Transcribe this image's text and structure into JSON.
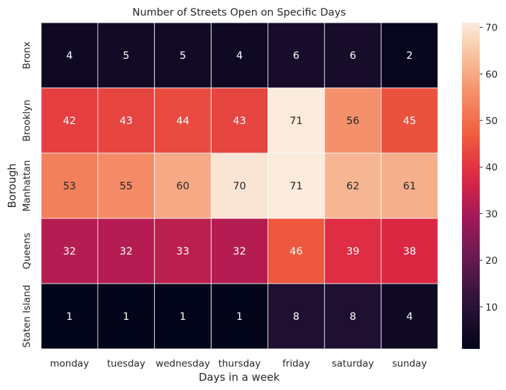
{
  "chart_data": {
    "type": "heatmap",
    "title": "Number of Streets Open on Specific Days",
    "xlabel": "Days in a week",
    "ylabel": "Borough",
    "x": [
      "monday",
      "tuesday",
      "wednesday",
      "thursday",
      "friday",
      "saturday",
      "sunday"
    ],
    "y": [
      "Bronx",
      "Brooklyn",
      "Manhattan",
      "Queens",
      "Staten Island"
    ],
    "values": [
      [
        4,
        5,
        5,
        4,
        6,
        6,
        2
      ],
      [
        42,
        43,
        44,
        43,
        71,
        56,
        45
      ],
      [
        53,
        55,
        60,
        70,
        71,
        62,
        61
      ],
      [
        32,
        32,
        33,
        32,
        46,
        39,
        38
      ],
      [
        1,
        1,
        1,
        1,
        8,
        8,
        4
      ]
    ],
    "colormap": "rocket",
    "colorbar": {
      "vmin": 1,
      "vmax": 71,
      "ticks": [
        10,
        20,
        30,
        40,
        50,
        60,
        70
      ]
    },
    "annotations": true
  }
}
